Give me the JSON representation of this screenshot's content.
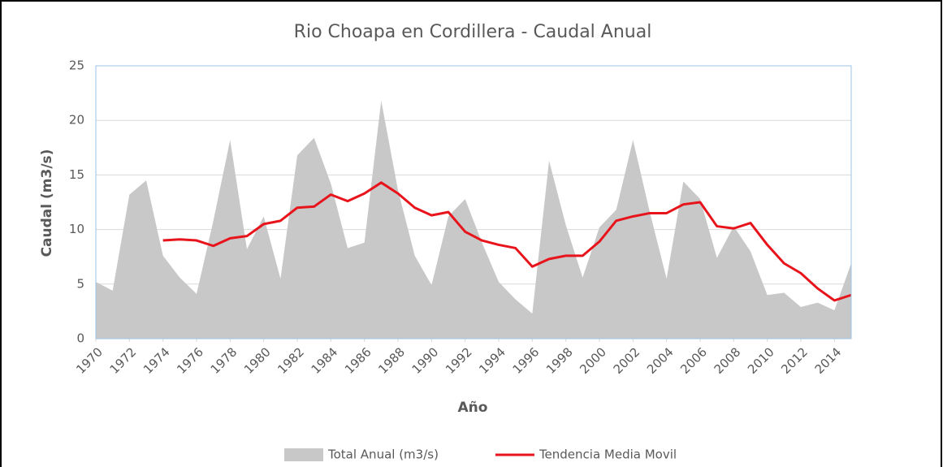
{
  "chart_data": {
    "type": "line",
    "title": "Rio Choapa en Cordillera - Caudal Anual",
    "x_label": "Año",
    "y_label": "Caudal (m3/s)",
    "x": [
      1970,
      1971,
      1972,
      1973,
      1974,
      1975,
      1976,
      1977,
      1978,
      1979,
      1980,
      1981,
      1982,
      1983,
      1984,
      1985,
      1986,
      1987,
      1988,
      1989,
      1990,
      1991,
      1992,
      1993,
      1994,
      1995,
      1996,
      1997,
      1998,
      1999,
      2000,
      2001,
      2002,
      2003,
      2004,
      2005,
      2006,
      2007,
      2008,
      2009,
      2010,
      2011,
      2012,
      2013,
      2014,
      2015
    ],
    "series": [
      {
        "name": "Total Anual (m3/s)",
        "type": "area",
        "color": "#c8c8c8",
        "values": [
          5.2,
          4.4,
          13.2,
          14.5,
          7.6,
          5.6,
          4.1,
          10.8,
          18.2,
          8.2,
          11.2,
          5.5,
          16.8,
          18.4,
          14.2,
          8.3,
          8.8,
          21.8,
          13.6,
          7.6,
          4.9,
          11.2,
          12.8,
          8.8,
          5.2,
          3.6,
          2.3,
          16.3,
          10.4,
          5.6,
          10.2,
          11.8,
          18.2,
          11.6,
          5.5,
          14.4,
          12.8,
          7.4,
          10.3,
          8.0,
          4.0,
          4.2,
          2.9,
          3.3,
          2.6,
          6.9
        ]
      },
      {
        "name": "Tendencia Media Movil",
        "type": "line",
        "color": "#e8141c",
        "values": [
          null,
          null,
          null,
          null,
          9.0,
          9.1,
          9.0,
          8.5,
          9.2,
          9.4,
          10.5,
          10.8,
          12.0,
          12.1,
          13.2,
          12.6,
          13.3,
          14.3,
          13.3,
          12.0,
          11.3,
          11.6,
          9.8,
          9.0,
          8.6,
          8.3,
          6.6,
          7.3,
          7.6,
          7.6,
          8.9,
          10.8,
          11.2,
          11.5,
          11.5,
          12.3,
          12.5,
          10.3,
          10.1,
          10.6,
          8.6,
          6.9,
          6.0,
          4.6,
          3.5,
          4.0
        ]
      }
    ],
    "xlim": [
      1970,
      2015
    ],
    "xticks": [
      1970,
      1972,
      1974,
      1976,
      1978,
      1980,
      1982,
      1984,
      1986,
      1988,
      1990,
      1992,
      1994,
      1996,
      1998,
      2000,
      2002,
      2004,
      2006,
      2008,
      2010,
      2012,
      2014
    ],
    "ylim": [
      0,
      25
    ],
    "yticks": [
      0,
      5,
      10,
      15,
      20,
      25
    ],
    "grid": true,
    "legend": "bottom"
  }
}
